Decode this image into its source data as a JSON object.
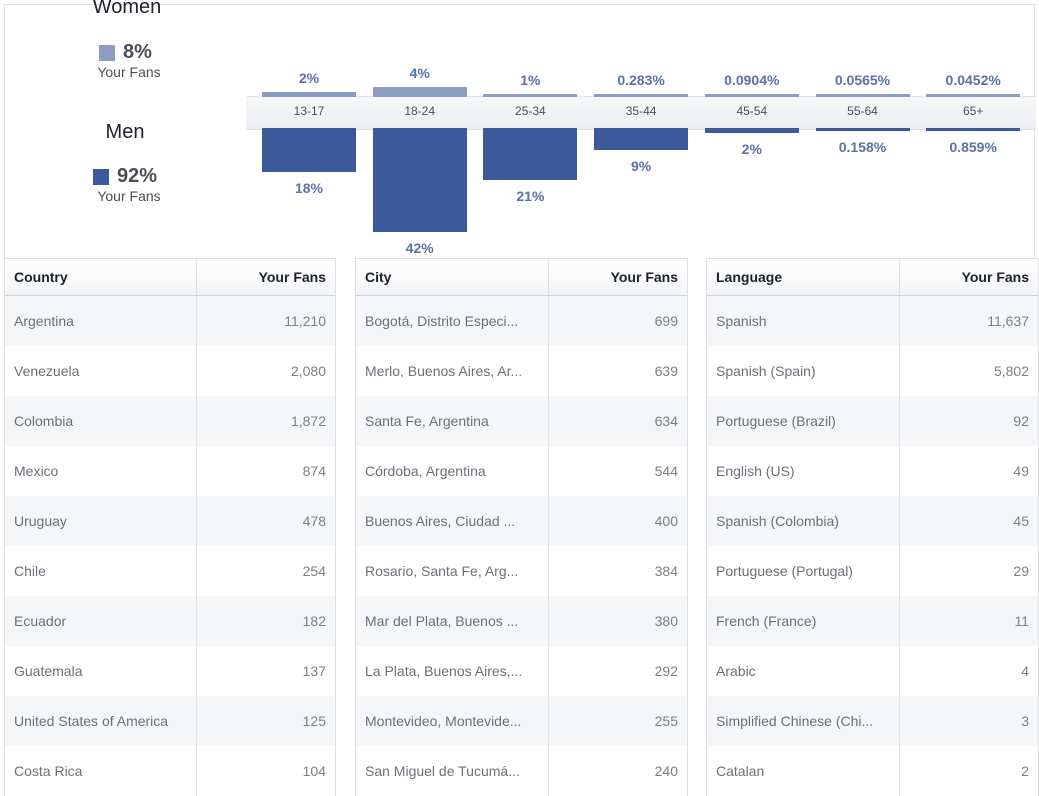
{
  "legend": {
    "women": {
      "title": "Women",
      "pct": "8%",
      "sub": "Your Fans",
      "color": "#8b9dc3"
    },
    "men": {
      "title": "Men",
      "pct": "92%",
      "sub": "Your Fans",
      "color": "#3b5998"
    }
  },
  "chart_data": {
    "type": "bar",
    "categories": [
      "13-17",
      "18-24",
      "25-34",
      "35-44",
      "45-54",
      "55-64",
      "65+"
    ],
    "series": [
      {
        "name": "Women",
        "values": [
          2,
          4,
          1,
          0.283,
          0.0904,
          0.0565,
          0.0452
        ],
        "labels": [
          "2%",
          "4%",
          "1%",
          "0.283%",
          "0.0904%",
          "0.0565%",
          "0.0452%"
        ]
      },
      {
        "name": "Men",
        "values": [
          18,
          42,
          21,
          9,
          2,
          0.158,
          0.859
        ],
        "labels": [
          "18%",
          "42%",
          "21%",
          "9%",
          "2%",
          "0.158%",
          "0.859%"
        ]
      }
    ]
  },
  "country_table": {
    "col1": "Country",
    "col2": "Your Fans",
    "rows": [
      [
        "Argentina",
        "11,210"
      ],
      [
        "Venezuela",
        "2,080"
      ],
      [
        "Colombia",
        "1,872"
      ],
      [
        "Mexico",
        "874"
      ],
      [
        "Uruguay",
        "478"
      ],
      [
        "Chile",
        "254"
      ],
      [
        "Ecuador",
        "182"
      ],
      [
        "Guatemala",
        "137"
      ],
      [
        "United States of America",
        "125"
      ],
      [
        "Costa Rica",
        "104"
      ]
    ]
  },
  "city_table": {
    "col1": "City",
    "col2": "Your Fans",
    "rows": [
      [
        "Bogotá, Distrito Especi...",
        "699"
      ],
      [
        "Merlo, Buenos Aires, Ar...",
        "639"
      ],
      [
        "Santa Fe, Argentina",
        "634"
      ],
      [
        "Córdoba, Argentina",
        "544"
      ],
      [
        "Buenos Aires, Ciudad ...",
        "400"
      ],
      [
        "Rosario, Santa Fe, Arg...",
        "384"
      ],
      [
        "Mar del Plata, Buenos ...",
        "380"
      ],
      [
        "La Plata, Buenos Aires,...",
        "292"
      ],
      [
        "Montevideo, Montevide...",
        "255"
      ],
      [
        "San Miguel de Tucumá...",
        "240"
      ]
    ]
  },
  "language_table": {
    "col1": "Language",
    "col2": "Your Fans",
    "rows": [
      [
        "Spanish",
        "11,637"
      ],
      [
        "Spanish (Spain)",
        "5,802"
      ],
      [
        "Portuguese (Brazil)",
        "92"
      ],
      [
        "English (US)",
        "49"
      ],
      [
        "Spanish (Colombia)",
        "45"
      ],
      [
        "Portuguese (Portugal)",
        "29"
      ],
      [
        "French (France)",
        "11"
      ],
      [
        "Arabic",
        "4"
      ],
      [
        "Simplified Chinese (Chi...",
        "3"
      ],
      [
        "Catalan",
        "2"
      ]
    ]
  }
}
